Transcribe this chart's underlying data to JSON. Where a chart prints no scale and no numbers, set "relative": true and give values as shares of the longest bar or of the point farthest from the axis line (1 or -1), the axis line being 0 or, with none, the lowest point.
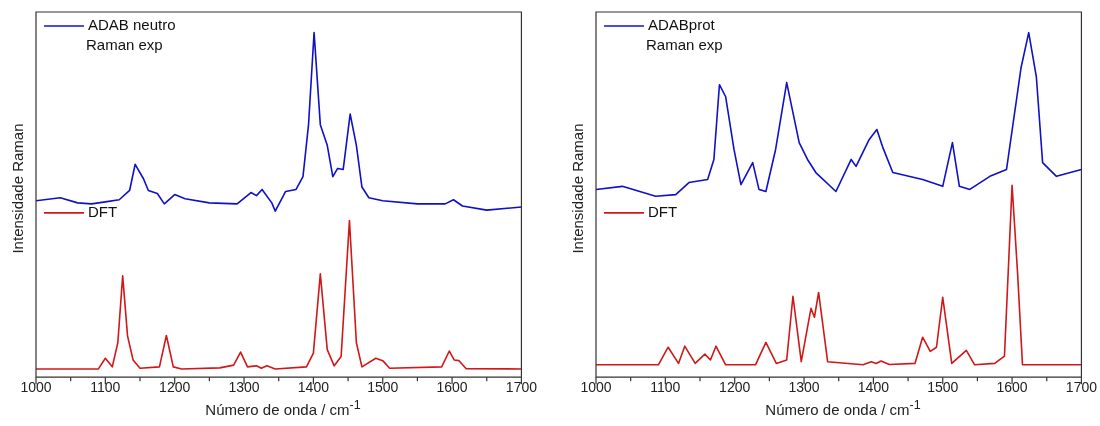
{
  "chart_data": [
    {
      "type": "line",
      "relative": true,
      "xlabel": "Número de onda / cm$^{-1}$",
      "ylabel": "Intensidade Raman",
      "xlim": [
        1000,
        1700
      ],
      "xticks": [
        1000,
        {
          "value": 1050,
          "label": null
        },
        1100,
        {
          "value": 1150,
          "label": null
        },
        1200,
        {
          "value": 1250,
          "label": null
        },
        1300,
        {
          "value": 1350,
          "label": null
        },
        1400,
        {
          "value": 1450,
          "label": null
        },
        1500,
        {
          "value": 1550,
          "label": null
        },
        1600,
        {
          "value": 1650,
          "label": null
        },
        1700
      ],
      "legend": "top left",
      "tick_labels": "x",
      "marker": "none",
      "grid": false,
      "series": [
        {
          "name": "ADAB neutro\nRaman exp",
          "color": "#1010c8",
          "x": [
            1000,
            1035,
            1060,
            1080,
            1100,
            1120,
            1135,
            1143,
            1155,
            1162,
            1175,
            1185,
            1200,
            1215,
            1250,
            1290,
            1310,
            1318,
            1326,
            1340,
            1345,
            1360,
            1375,
            1385,
            1393,
            1401,
            1410,
            1420,
            1428,
            1435,
            1443,
            1453,
            1462,
            1470,
            1480,
            1500,
            1550,
            1590,
            1602,
            1615,
            1650,
            1700
          ],
          "values": [
            0.512,
            0.521,
            0.506,
            0.503,
            0.509,
            0.515,
            0.542,
            0.618,
            0.576,
            0.542,
            0.533,
            0.503,
            0.53,
            0.518,
            0.506,
            0.503,
            0.536,
            0.527,
            0.545,
            0.506,
            0.482,
            0.539,
            0.545,
            0.582,
            0.733,
            1.0,
            0.733,
            0.673,
            0.582,
            0.606,
            0.603,
            0.764,
            0.673,
            0.552,
            0.521,
            0.512,
            0.503,
            0.503,
            0.515,
            0.497,
            0.485,
            0.494
          ]
        },
        {
          "name": "DFT",
          "color": "#d01818",
          "x": [
            1000,
            1090,
            1100,
            1110,
            1118,
            1125,
            1132,
            1140,
            1150,
            1178,
            1188,
            1198,
            1210,
            1265,
            1285,
            1295,
            1305,
            1318,
            1325,
            1333,
            1345,
            1390,
            1400,
            1410,
            1420,
            1430,
            1440,
            1452,
            1462,
            1470,
            1490,
            1500,
            1510,
            1585,
            1596,
            1603,
            1610,
            1620,
            1700
          ],
          "values": [
            0.024,
            0.024,
            0.055,
            0.03,
            0.1,
            0.294,
            0.12,
            0.05,
            0.026,
            0.03,
            0.121,
            0.03,
            0.024,
            0.027,
            0.035,
            0.073,
            0.03,
            0.033,
            0.026,
            0.033,
            0.024,
            0.03,
            0.07,
            0.3,
            0.08,
            0.033,
            0.06,
            0.455,
            0.1,
            0.03,
            0.055,
            0.048,
            0.026,
            0.03,
            0.076,
            0.05,
            0.048,
            0.025,
            0.024
          ]
        }
      ]
    },
    {
      "type": "line",
      "relative": true,
      "xlabel": "Número de onda / cm$^{-1}$",
      "ylabel": "Intensidade Raman",
      "xlim": [
        1000,
        1700
      ],
      "xticks": [
        1000,
        {
          "value": 1050,
          "label": null
        },
        1100,
        {
          "value": 1150,
          "label": null
        },
        1200,
        {
          "value": 1250,
          "label": null
        },
        1300,
        {
          "value": 1350,
          "label": null
        },
        1400,
        {
          "value": 1450,
          "label": null
        },
        1500,
        {
          "value": 1550,
          "label": null
        },
        1600,
        {
          "value": 1650,
          "label": null
        },
        1700
      ],
      "legend": "top left",
      "tick_labels": "x",
      "marker": "none",
      "grid": false,
      "series": [
        {
          "name": "ADABprot\nRaman exp",
          "color": "#1010c8",
          "x": [
            1000,
            1038,
            1086,
            1115,
            1134,
            1161,
            1170,
            1178,
            1187,
            1199,
            1209,
            1226,
            1235,
            1245,
            1259,
            1275,
            1293,
            1305,
            1317,
            1346,
            1368,
            1375,
            1394,
            1405,
            1413,
            1428,
            1471,
            1500,
            1514,
            1524,
            1539,
            1568,
            1592,
            1613,
            1624,
            1635,
            1644,
            1664,
            1700
          ],
          "values": [
            0.545,
            0.554,
            0.525,
            0.53,
            0.565,
            0.574,
            0.632,
            0.849,
            0.814,
            0.661,
            0.559,
            0.623,
            0.545,
            0.539,
            0.661,
            0.855,
            0.681,
            0.632,
            0.594,
            0.539,
            0.632,
            0.612,
            0.69,
            0.719,
            0.67,
            0.594,
            0.574,
            0.554,
            0.681,
            0.554,
            0.545,
            0.583,
            0.603,
            0.899,
            1.0,
            0.872,
            0.623,
            0.583,
            0.603
          ]
        },
        {
          "name": "DFT",
          "color": "#d01818",
          "x": [
            1000,
            1090,
            1104,
            1119,
            1128,
            1143,
            1157,
            1165,
            1173,
            1187,
            1230,
            1245,
            1260,
            1275,
            1284,
            1296,
            1310,
            1315,
            1321,
            1334,
            1385,
            1397,
            1404,
            1411,
            1423,
            1460,
            1471,
            1482,
            1491,
            1500,
            1513,
            1534,
            1546,
            1575,
            1589,
            1600,
            1608,
            1615,
            1700
          ],
          "values": [
            0.036,
            0.036,
            0.087,
            0.04,
            0.09,
            0.04,
            0.067,
            0.05,
            0.09,
            0.036,
            0.036,
            0.101,
            0.04,
            0.05,
            0.235,
            0.045,
            0.2,
            0.174,
            0.246,
            0.045,
            0.036,
            0.045,
            0.04,
            0.047,
            0.037,
            0.04,
            0.116,
            0.075,
            0.087,
            0.232,
            0.04,
            0.078,
            0.036,
            0.04,
            0.061,
            0.557,
            0.3,
            0.036,
            0.036
          ]
        }
      ]
    }
  ]
}
